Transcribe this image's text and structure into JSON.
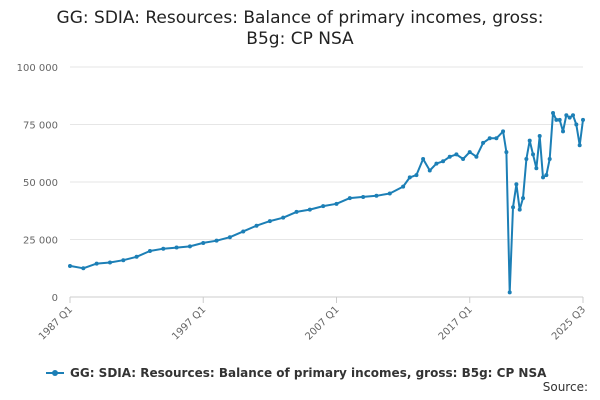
{
  "chart_data": {
    "type": "line",
    "title": "GG: SDIA: Resources: Balance of primary incomes, gross: B5g: CP NSA",
    "title_lines": [
      "GG: SDIA: Resources: Balance of primary incomes, gross:",
      "B5g: CP NSA"
    ],
    "xlabel": "",
    "ylabel": "",
    "x_ticks": [
      "1987 Q1",
      "1997 Q1",
      "2007 Q1",
      "2017 Q1",
      "2025 Q3"
    ],
    "y_ticks": [
      "0",
      "25 000",
      "50 000",
      "75 000",
      "100 000"
    ],
    "y_tick_values": [
      0,
      25000,
      50000,
      75000,
      100000
    ],
    "ylim": [
      0,
      100000
    ],
    "x_range": [
      "1987 Q1",
      "2025 Q3"
    ],
    "grid": true,
    "legend": "bottom",
    "series": [
      {
        "name": "GG: SDIA: Resources: Balance of primary incomes, gross: B5g: CP NSA",
        "color": "#1c7fb6",
        "x": [
          "1987 Q1",
          "1988 Q1",
          "1989 Q1",
          "1990 Q1",
          "1991 Q1",
          "1992 Q1",
          "1993 Q1",
          "1994 Q1",
          "1995 Q1",
          "1996 Q1",
          "1997 Q1",
          "1998 Q1",
          "1999 Q1",
          "2000 Q1",
          "2001 Q1",
          "2002 Q1",
          "2003 Q1",
          "2004 Q1",
          "2005 Q1",
          "2006 Q1",
          "2007 Q1",
          "2008 Q1",
          "2009 Q1",
          "2010 Q1",
          "2011 Q1",
          "2012 Q1",
          "2012 Q3",
          "2013 Q1",
          "2013 Q3",
          "2014 Q1",
          "2014 Q3",
          "2015 Q1",
          "2015 Q3",
          "2016 Q1",
          "2016 Q3",
          "2017 Q1",
          "2017 Q3",
          "2018 Q1",
          "2018 Q3",
          "2019 Q1",
          "2019 Q3",
          "2019 Q4",
          "2020 Q1",
          "2020 Q2",
          "2020 Q3",
          "2020 Q4",
          "2021 Q1",
          "2021 Q2",
          "2021 Q3",
          "2021 Q4",
          "2022 Q1",
          "2022 Q2",
          "2022 Q3",
          "2022 Q4",
          "2023 Q1",
          "2023 Q2",
          "2023 Q3",
          "2023 Q4",
          "2024 Q1",
          "2024 Q2",
          "2024 Q3",
          "2024 Q4",
          "2025 Q1",
          "2025 Q2",
          "2025 Q3"
        ],
        "values": [
          13500,
          12500,
          14500,
          15000,
          16000,
          17500,
          20000,
          21000,
          21500,
          22000,
          23500,
          24500,
          26000,
          28500,
          31000,
          33000,
          34500,
          37000,
          38000,
          39500,
          40500,
          43000,
          43500,
          44000,
          45000,
          48000,
          52000,
          53000,
          60000,
          55000,
          58000,
          59000,
          61000,
          62000,
          60000,
          63000,
          61000,
          67000,
          69000,
          69000,
          72000,
          63000,
          2000,
          39000,
          49000,
          38000,
          43000,
          60000,
          68000,
          62000,
          56000,
          70000,
          52000,
          53000,
          60000,
          80000,
          77000,
          77000,
          72000,
          79000,
          78000,
          79000,
          75000,
          66000,
          77000
        ]
      }
    ]
  },
  "legend_label": "GG: SDIA: Resources: Balance of primary incomes, gross: B5g: CP NSA",
  "source_label": "Source:"
}
